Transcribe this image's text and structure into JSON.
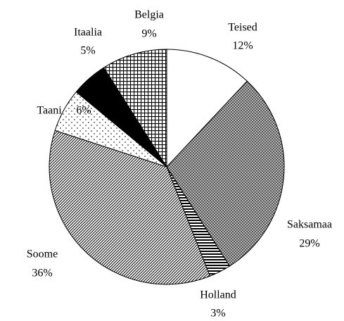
{
  "chart_data": {
    "type": "pie",
    "categories": [
      "Teised",
      "Saksamaa",
      "Holland",
      "Soome",
      "Taani",
      "Itaalia",
      "Belgia"
    ],
    "values": [
      12,
      29,
      3,
      36,
      6,
      5,
      9
    ],
    "value_labels": [
      "12%",
      "29%",
      "3%",
      "36%",
      "6%",
      "5%",
      "9%"
    ]
  }
}
